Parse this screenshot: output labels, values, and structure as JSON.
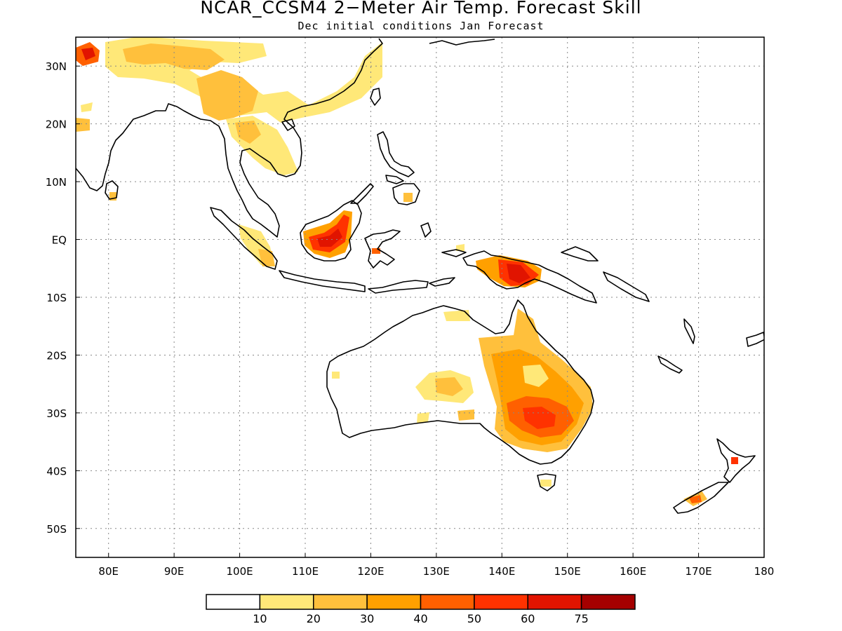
{
  "title": "NCAR_CCSM4 2−Meter Air Temp. Forecast Skill",
  "subtitle": "Dec initial conditions  Jan Forecast",
  "map": {
    "lon_range": [
      75,
      180
    ],
    "lat_range": [
      -55,
      35
    ],
    "x_ticks": [
      "80E",
      "90E",
      "100E",
      "110E",
      "120E",
      "130E",
      "140E",
      "150E",
      "160E",
      "170E",
      "180"
    ],
    "x_tick_lons": [
      80,
      90,
      100,
      110,
      120,
      130,
      140,
      150,
      160,
      170,
      180
    ],
    "y_ticks": [
      "30N",
      "20N",
      "10N",
      "EQ",
      "10S",
      "20S",
      "30S",
      "40S",
      "50S"
    ],
    "y_tick_lats": [
      30,
      20,
      10,
      0,
      -10,
      -20,
      -30,
      -40,
      -50
    ],
    "grid": "dotted",
    "coastline_color": "#000000"
  },
  "colorbar": {
    "colors": [
      "#ffffff",
      "#ffe878",
      "#ffc03c",
      "#ffa000",
      "#ff6000",
      "#ff3200",
      "#e11400",
      "#a50000"
    ],
    "labels": [
      "10",
      "20",
      "30",
      "40",
      "50",
      "60",
      "75"
    ]
  }
}
